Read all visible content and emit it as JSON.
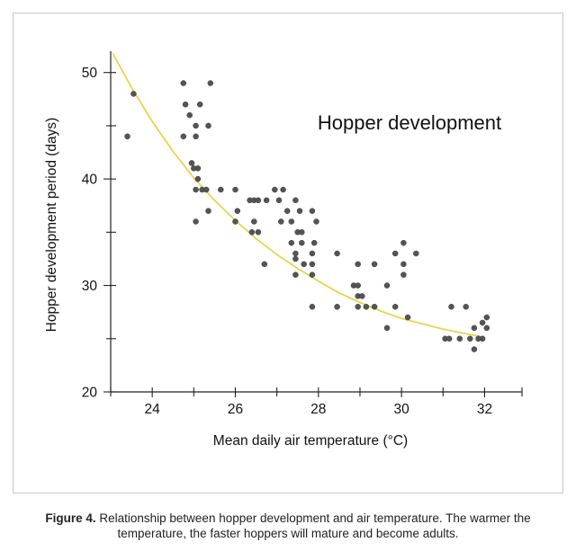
{
  "figure": {
    "caption_label": "Figure 4.",
    "caption_text": " Relationship between hopper development and air temperature. The warmer the temperature, the faster hoppers will mature and become adults."
  },
  "chart_data": {
    "type": "scatter",
    "title": "Hopper development",
    "xlabel": "Mean daily air temperature (°C)",
    "ylabel": "Hopper development period (days)",
    "xlim": [
      23,
      32.9
    ],
    "ylim": [
      20,
      52
    ],
    "x_ticks": [
      24,
      26,
      28,
      30,
      32
    ],
    "y_ticks": [
      20,
      30,
      40,
      50
    ],
    "trend_color": "#e8d44d",
    "point_color": "#555555",
    "points": [
      [
        23.4,
        44
      ],
      [
        23.55,
        48
      ],
      [
        24.75,
        49
      ],
      [
        24.8,
        47
      ],
      [
        24.75,
        44
      ],
      [
        24.9,
        46
      ],
      [
        25.05,
        44
      ],
      [
        25.05,
        45
      ],
      [
        25.15,
        47
      ],
      [
        25.35,
        45
      ],
      [
        25.4,
        49
      ],
      [
        24.95,
        41.5
      ],
      [
        25.1,
        41
      ],
      [
        25.0,
        41
      ],
      [
        25.1,
        40
      ],
      [
        25.05,
        39
      ],
      [
        25.2,
        39
      ],
      [
        25.3,
        39
      ],
      [
        25.05,
        36
      ],
      [
        25.35,
        37
      ],
      [
        25.65,
        39
      ],
      [
        26.0,
        39
      ],
      [
        26.05,
        37
      ],
      [
        26.0,
        36
      ],
      [
        26.35,
        38
      ],
      [
        26.45,
        38
      ],
      [
        26.55,
        38
      ],
      [
        26.45,
        36
      ],
      [
        26.55,
        35
      ],
      [
        26.4,
        35
      ],
      [
        26.75,
        38
      ],
      [
        26.7,
        32
      ],
      [
        26.95,
        39
      ],
      [
        27.15,
        39
      ],
      [
        27.05,
        38
      ],
      [
        27.1,
        36
      ],
      [
        27.25,
        37
      ],
      [
        27.35,
        36
      ],
      [
        27.45,
        38
      ],
      [
        27.55,
        37
      ],
      [
        27.5,
        35
      ],
      [
        27.6,
        35
      ],
      [
        27.35,
        34
      ],
      [
        27.6,
        34
      ],
      [
        27.45,
        33
      ],
      [
        27.45,
        31
      ],
      [
        27.45,
        32.5
      ],
      [
        27.65,
        32
      ],
      [
        27.85,
        37
      ],
      [
        27.95,
        36
      ],
      [
        27.9,
        34
      ],
      [
        27.85,
        33
      ],
      [
        27.85,
        32
      ],
      [
        27.85,
        31
      ],
      [
        27.85,
        28
      ],
      [
        28.45,
        33
      ],
      [
        28.45,
        28
      ],
      [
        28.85,
        30
      ],
      [
        28.95,
        32
      ],
      [
        28.95,
        30
      ],
      [
        28.95,
        29
      ],
      [
        29.05,
        29
      ],
      [
        28.95,
        28
      ],
      [
        29.15,
        28
      ],
      [
        29.35,
        28
      ],
      [
        29.35,
        32
      ],
      [
        29.65,
        26
      ],
      [
        29.65,
        30
      ],
      [
        29.85,
        33
      ],
      [
        29.85,
        28
      ],
      [
        30.05,
        34
      ],
      [
        30.05,
        32
      ],
      [
        30.05,
        31
      ],
      [
        30.15,
        27
      ],
      [
        30.35,
        33
      ],
      [
        31.05,
        25
      ],
      [
        31.15,
        25
      ],
      [
        31.2,
        28
      ],
      [
        31.4,
        25
      ],
      [
        31.55,
        28
      ],
      [
        31.65,
        25
      ],
      [
        31.75,
        24
      ],
      [
        31.75,
        26
      ],
      [
        31.85,
        25
      ],
      [
        31.95,
        25
      ],
      [
        31.95,
        26.5
      ],
      [
        32.05,
        26
      ],
      [
        32.05,
        27
      ]
    ],
    "trend_points": [
      [
        23.05,
        51.8
      ],
      [
        23.5,
        48.6
      ],
      [
        24.0,
        45.4
      ],
      [
        24.5,
        42.6
      ],
      [
        25.0,
        40.1
      ],
      [
        25.5,
        38.0
      ],
      [
        26.0,
        36.1
      ],
      [
        26.5,
        34.4
      ],
      [
        27.0,
        32.9
      ],
      [
        27.5,
        31.6
      ],
      [
        28.0,
        30.4
      ],
      [
        28.5,
        29.3
      ],
      [
        29.0,
        28.4
      ],
      [
        29.5,
        27.6
      ],
      [
        30.0,
        26.9
      ],
      [
        30.5,
        26.4
      ],
      [
        31.0,
        25.9
      ],
      [
        31.5,
        25.5
      ],
      [
        31.9,
        25.2
      ]
    ],
    "grid": false,
    "legend": "none"
  }
}
